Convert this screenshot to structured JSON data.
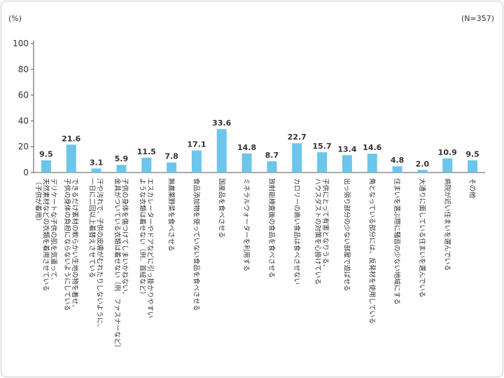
{
  "chart_data": {
    "type": "bar",
    "unit_label": "(%)",
    "sample_label": "(N=357)",
    "ylim": [
      0,
      100
    ],
    "yticks": [
      0,
      20,
      40,
      60,
      80,
      100
    ],
    "grid": false,
    "bar_color": "#6cc5ea",
    "axis_color": "#555555",
    "categories": [
      [
        "デリケートな子供の肌を気遣って、",
        "天然素材などの衣類を着用させている",
        "（子供が着用）"
      ],
      [
        "できるだけ素材の軟らかい生地の物を着せ、",
        "子供の身体の負担にならないようにしている"
      ],
      [
        "汗や汚れで、子供の皮膚がむれたりしないように、",
        "一日に二回以上着替えさせている"
      ],
      [
        "子供の身体を傷つけてしまいかねない、",
        "金具がついている衣類は着せない（例　ファスナーなど）"
      ],
      [
        "エスカレーターやドアなどに引っ掛かりやすい",
        "ような衣類は着せない（例．首紐など）"
      ],
      [
        "無農薬野菜を食べさせる"
      ],
      [
        "食品添加物を使っていない食品を食べさせる"
      ],
      [
        "国産品を食べさせる"
      ],
      [
        "ミネラルウォーターを利用する"
      ],
      [
        "放射能検査後の食品を食べさせる"
      ],
      [
        "カロリーの高い食品は食べさせない"
      ],
      [
        "子供にとって有害となりうる、",
        "ハウスダストの対策を心掛けている"
      ],
      [
        "出っ張り部分の少ない部屋で遊ばせる"
      ],
      [
        "角となっている部分には、反発材を使用している"
      ],
      [
        "住まいを選ぶ際に騒音の少ない地域にする"
      ],
      [
        "大通りに面している住まいを選んでいる"
      ],
      [
        "病院が近い住まいを選んでいる"
      ],
      [
        "その他"
      ]
    ],
    "values": [
      9.5,
      21.6,
      3.1,
      5.9,
      11.5,
      7.8,
      17.1,
      33.6,
      14.8,
      8.7,
      22.7,
      15.7,
      13.4,
      14.6,
      4.8,
      2.0,
      10.9,
      9.5
    ],
    "value_labels": [
      "9.5",
      "21.6",
      "3.1",
      "5.9",
      "11.5",
      "7.8",
      "17.1",
      "33.6",
      "14.8",
      "8.7",
      "22.7",
      "15.7",
      "13.4",
      "14.6",
      "4.8",
      "2.0",
      "10.9",
      "9.5"
    ]
  }
}
